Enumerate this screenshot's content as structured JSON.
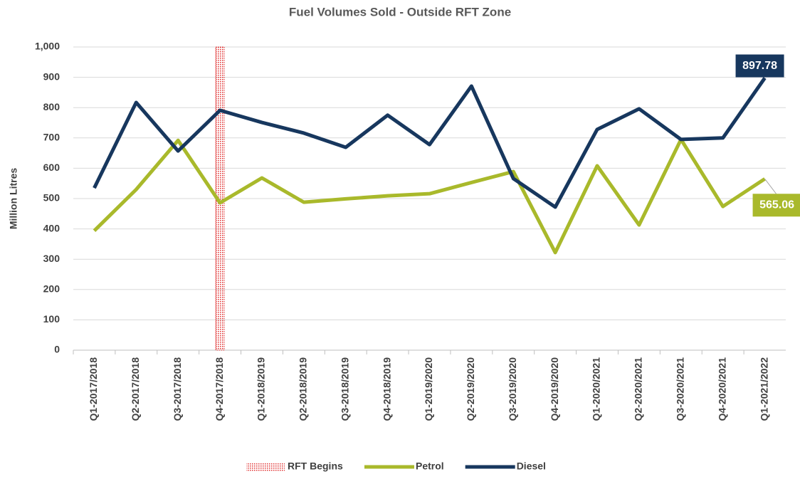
{
  "chart_data": {
    "type": "line",
    "title": "Fuel Volumes Sold - Outside RFT Zone",
    "y_label": "Million Litres",
    "categories": [
      "Q1-2017/2018",
      "Q2-2017/2018",
      "Q3-2017/2018",
      "Q4-2017/2018",
      "Q1-2018/2019",
      "Q2-2018/2019",
      "Q3-2018/2019",
      "Q4-2018/2019",
      "Q1-2019/2020",
      "Q2-2019/2020",
      "Q3-2019/2020",
      "Q4-2019/2020",
      "Q1-2020/2021",
      "Q2-2020/2021",
      "Q3-2020/2021",
      "Q4-2020/2021",
      "Q1-2021/2022"
    ],
    "series": [
      {
        "name": "Petrol",
        "color": "#a9b92b",
        "end_label": true,
        "values": [
          394,
          530,
          692,
          486,
          568,
          488,
          499,
          509,
          516,
          553,
          589,
          322,
          608,
          413,
          695,
          474,
          565.06
        ]
      },
      {
        "name": "Diesel",
        "color": "#17375e",
        "end_label": true,
        "values": [
          535,
          817,
          657,
          791,
          751,
          716,
          669,
          775,
          678,
          871,
          566,
          472,
          728,
          796,
          695,
          700,
          897.78
        ]
      }
    ],
    "marker": {
      "name": "RFT Begins",
      "category": "Q4-2017/2018",
      "color": "#e03030"
    },
    "ylim": [
      0,
      1000
    ],
    "yticks": [
      0,
      100,
      200,
      300,
      400,
      500,
      600,
      700,
      800,
      900,
      {
        "value": 1000,
        "label": "1,000"
      }
    ],
    "grid": true
  }
}
